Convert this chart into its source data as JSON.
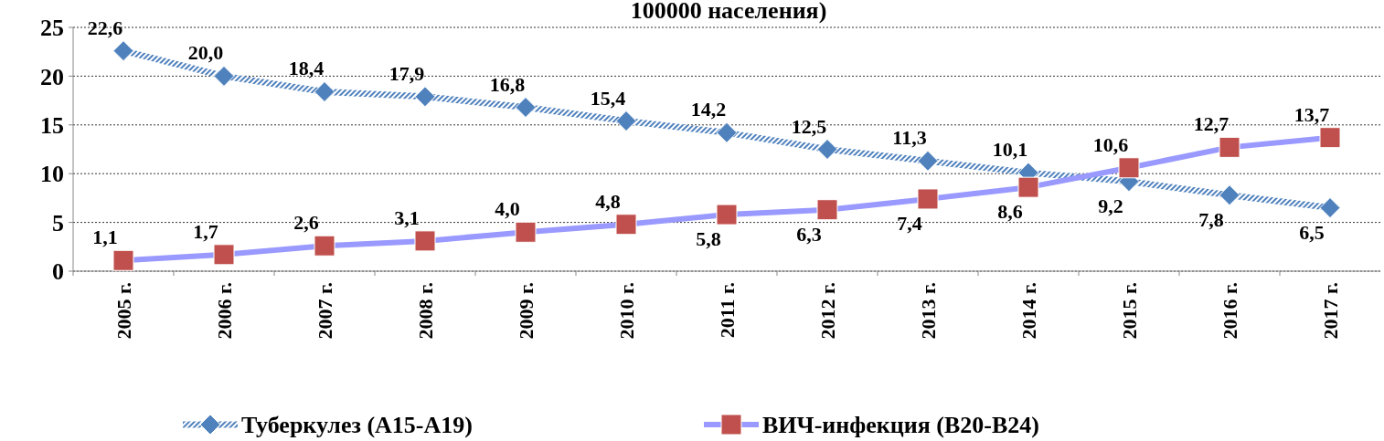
{
  "chart_data": {
    "type": "line",
    "title": "100000 населения)",
    "categories": [
      "2005 г.",
      "2006 г.",
      "2007 г.",
      "2008 г.",
      "2009 г.",
      "2010 г.",
      "2011 г.",
      "2012 г.",
      "2013 г.",
      "2014 г.",
      "2015 г.",
      "2016 г.",
      "2017 г."
    ],
    "series": [
      {
        "name": "Туберкулез (А15-А19)",
        "color": "#4f81bd",
        "marker": "diamond",
        "values": [
          22.6,
          20.0,
          18.4,
          17.9,
          16.8,
          15.4,
          14.2,
          12.5,
          11.3,
          10.1,
          9.2,
          7.8,
          6.5
        ],
        "value_labels": [
          "22,6",
          "20,0",
          "18,4",
          "17,9",
          "16,8",
          "15,4",
          "14,2",
          "12,5",
          "11,3",
          "10,1",
          "9,2",
          "7,8",
          "6,5"
        ]
      },
      {
        "name": "ВИЧ-инфекция (В20-В24)",
        "color": "#9999ff",
        "marker": "square",
        "colors": [
          "#c0504d",
          "#c0504d",
          "#c0504d",
          "#c0504d",
          "#c0504d",
          "#c0504d",
          "#c0504d",
          "#c0504d",
          "#c0504d",
          "#c0504d",
          "#c0504d",
          "#c0504d",
          "#c0504d"
        ],
        "values": [
          1.1,
          1.7,
          2.6,
          3.1,
          4.0,
          4.8,
          5.8,
          6.3,
          7.4,
          8.6,
          10.6,
          12.7,
          13.7
        ],
        "value_labels": [
          "1,1",
          "1,7",
          "2,6",
          "3,1",
          "4,0",
          "4,8",
          "5,8",
          "6,3",
          "7,4",
          "8,6",
          "10,6",
          "12,7",
          "13,7"
        ]
      }
    ],
    "ylim": [
      0,
      25
    ],
    "yticks": [
      0,
      5,
      10,
      15,
      20,
      25
    ],
    "grid": "y",
    "legend": "bottom"
  }
}
